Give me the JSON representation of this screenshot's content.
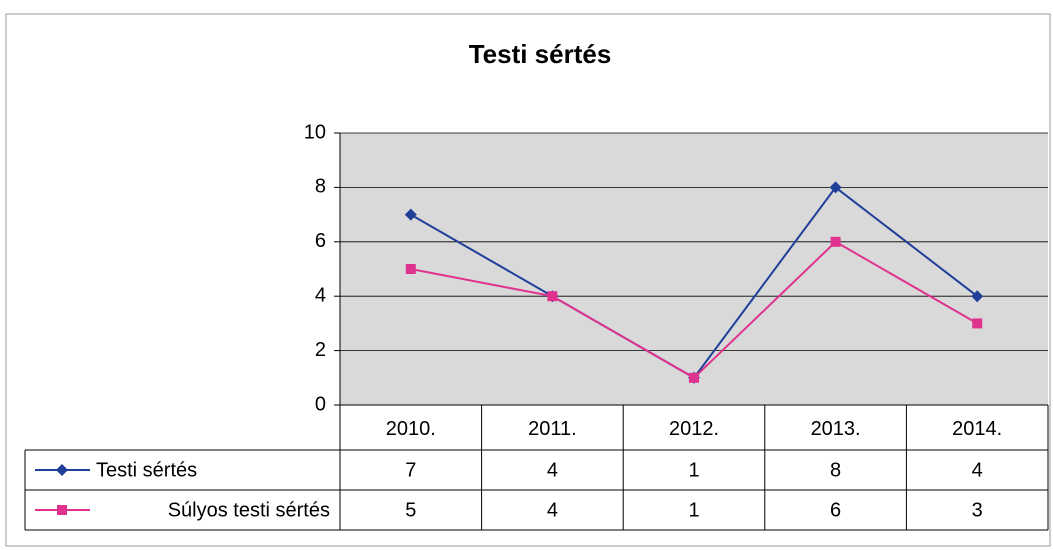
{
  "chart_data": {
    "type": "line",
    "title": "Testi sértés",
    "categories": [
      "2010.",
      "2011.",
      "2012.",
      "2013.",
      "2014."
    ],
    "series": [
      {
        "name": "Testi sértés",
        "color": "#1f3f99",
        "marker": "diamond",
        "values": [
          7,
          4,
          1,
          8,
          4
        ]
      },
      {
        "name": "Súlyos testi sértés",
        "color": "#e0338f",
        "marker": "square",
        "values": [
          5,
          4,
          1,
          6,
          3
        ]
      }
    ],
    "ylim": [
      0,
      10
    ],
    "yticks": [
      0,
      2,
      4,
      6,
      8,
      10
    ],
    "grid": true,
    "data_table": true
  }
}
